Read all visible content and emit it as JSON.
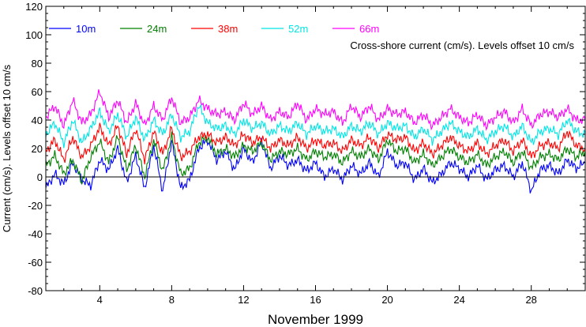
{
  "chart_data": {
    "type": "line",
    "annotation": "Cross-shore current (cm/s). Levels offset 10 cm/s",
    "xlabel": "November 1999",
    "ylabel": "Current (cm/s). Levels offset 10 cm/s",
    "xlim": [
      1,
      31
    ],
    "ylim": [
      -80,
      120
    ],
    "xticks": [
      4,
      8,
      12,
      16,
      20,
      24,
      28
    ],
    "yticks": [
      -80,
      -60,
      -40,
      -20,
      0,
      20,
      40,
      60,
      80,
      100,
      120
    ],
    "grid": false,
    "legend_position": "top",
    "zero_line": true,
    "series": [
      {
        "name": "10m",
        "color": "#0000ff",
        "x": [
          1,
          1.5,
          2,
          2.5,
          3,
          3.5,
          4,
          4.5,
          5,
          5.5,
          6,
          6.5,
          7,
          7.5,
          8,
          8.5,
          9,
          9.5,
          10,
          10.5,
          11,
          11.5,
          12,
          12.5,
          13,
          13.5,
          14,
          14.5,
          15,
          15.5,
          16,
          16.5,
          17,
          17.5,
          18,
          18.5,
          19,
          19.5,
          20,
          20.5,
          21,
          21.5,
          22,
          22.5,
          23,
          23.5,
          24,
          24.5,
          25,
          25.5,
          26,
          26.5,
          27,
          27.5,
          28,
          28.5,
          29,
          29.5,
          30,
          30.5,
          31
        ],
        "y": [
          -8,
          2,
          -5,
          10,
          -2,
          -6,
          12,
          5,
          20,
          -4,
          15,
          -8,
          22,
          -10,
          25,
          -8,
          -2,
          20,
          26,
          12,
          18,
          5,
          20,
          10,
          25,
          6,
          15,
          8,
          12,
          4,
          10,
          0,
          6,
          -2,
          8,
          2,
          10,
          0,
          18,
          8,
          10,
          -2,
          6,
          -4,
          2,
          10,
          6,
          0,
          8,
          -2,
          5,
          8,
          0,
          10,
          -10,
          5,
          8,
          2,
          12,
          6,
          10
        ]
      },
      {
        "name": "24m",
        "color": "#008000",
        "x": [
          1,
          1.5,
          2,
          2.5,
          3,
          3.5,
          4,
          4.5,
          5,
          5.5,
          6,
          6.5,
          7,
          7.5,
          8,
          8.5,
          9,
          9.5,
          10,
          10.5,
          11,
          11.5,
          12,
          12.5,
          13,
          13.5,
          14,
          14.5,
          15,
          15.5,
          16,
          16.5,
          17,
          17.5,
          18,
          18.5,
          19,
          19.5,
          20,
          20.5,
          21,
          21.5,
          22,
          22.5,
          23,
          23.5,
          24,
          24.5,
          25,
          25.5,
          26,
          26.5,
          27,
          27.5,
          28,
          28.5,
          29,
          29.5,
          30,
          30.5,
          31
        ],
        "y": [
          8,
          15,
          2,
          12,
          -3,
          14,
          25,
          10,
          28,
          5,
          22,
          0,
          26,
          4,
          28,
          2,
          6,
          24,
          28,
          16,
          20,
          14,
          22,
          18,
          24,
          12,
          18,
          16,
          20,
          12,
          18,
          14,
          16,
          10,
          18,
          14,
          20,
          12,
          26,
          18,
          20,
          10,
          16,
          8,
          14,
          20,
          14,
          10,
          16,
          8,
          14,
          18,
          10,
          18,
          6,
          14,
          16,
          12,
          20,
          14,
          18
        ]
      },
      {
        "name": "38m",
        "color": "#ff0000",
        "x": [
          1,
          1.5,
          2,
          2.5,
          3,
          3.5,
          4,
          4.5,
          5,
          5.5,
          6,
          6.5,
          7,
          7.5,
          8,
          8.5,
          9,
          9.5,
          10,
          10.5,
          11,
          11.5,
          12,
          12.5,
          13,
          13.5,
          14,
          14.5,
          15,
          15.5,
          16,
          16.5,
          17,
          17.5,
          18,
          18.5,
          19,
          19.5,
          20,
          20.5,
          21,
          21.5,
          22,
          22.5,
          23,
          23.5,
          24,
          24.5,
          25,
          25.5,
          26,
          26.5,
          27,
          27.5,
          28,
          28.5,
          29,
          29.5,
          30,
          30.5,
          31
        ],
        "y": [
          18,
          26,
          12,
          28,
          14,
          22,
          35,
          22,
          36,
          16,
          34,
          12,
          32,
          16,
          34,
          14,
          18,
          28,
          30,
          24,
          28,
          22,
          30,
          24,
          28,
          20,
          26,
          22,
          28,
          20,
          26,
          22,
          24,
          18,
          26,
          22,
          28,
          20,
          30,
          26,
          28,
          18,
          24,
          16,
          22,
          28,
          22,
          18,
          24,
          16,
          22,
          26,
          18,
          26,
          14,
          22,
          24,
          20,
          32,
          22,
          20
        ]
      },
      {
        "name": "52m",
        "color": "#00e5e5",
        "x": [
          1,
          1.5,
          2,
          2.5,
          3,
          3.5,
          4,
          4.5,
          5,
          5.5,
          6,
          6.5,
          7,
          7.5,
          8,
          8.5,
          9,
          9.5,
          10,
          10.5,
          11,
          11.5,
          12,
          12.5,
          13,
          13.5,
          14,
          14.5,
          15,
          15.5,
          16,
          16.5,
          17,
          17.5,
          18,
          18.5,
          19,
          19.5,
          20,
          20.5,
          21,
          21.5,
          22,
          22.5,
          23,
          23.5,
          24,
          24.5,
          25,
          25.5,
          26,
          26.5,
          27,
          27.5,
          28,
          28.5,
          29,
          29.5,
          30,
          30.5,
          31
        ],
        "y": [
          30,
          38,
          24,
          40,
          24,
          34,
          46,
          32,
          44,
          28,
          42,
          26,
          40,
          30,
          44,
          28,
          32,
          50,
          38,
          34,
          36,
          30,
          40,
          34,
          38,
          30,
          36,
          32,
          38,
          30,
          36,
          32,
          34,
          28,
          36,
          32,
          38,
          30,
          38,
          34,
          36,
          28,
          34,
          26,
          32,
          38,
          32,
          28,
          34,
          26,
          32,
          36,
          28,
          36,
          24,
          32,
          34,
          30,
          40,
          32,
          30
        ]
      },
      {
        "name": "66m",
        "color": "#ff00ff",
        "x": [
          1,
          1.5,
          2,
          2.5,
          3,
          3.5,
          4,
          4.5,
          5,
          5.5,
          6,
          6.5,
          7,
          7.5,
          8,
          8.5,
          9,
          9.5,
          10,
          10.5,
          11,
          11.5,
          12,
          12.5,
          13,
          13.5,
          14,
          14.5,
          15,
          15.5,
          16,
          16.5,
          17,
          17.5,
          18,
          18.5,
          19,
          19.5,
          20,
          20.5,
          21,
          21.5,
          22,
          22.5,
          23,
          23.5,
          24,
          24.5,
          25,
          25.5,
          26,
          26.5,
          27,
          27.5,
          28,
          28.5,
          29,
          29.5,
          30,
          30.5,
          31
        ],
        "y": [
          42,
          50,
          36,
          54,
          38,
          44,
          60,
          42,
          54,
          38,
          52,
          36,
          50,
          40,
          56,
          38,
          42,
          54,
          48,
          44,
          46,
          40,
          52,
          44,
          50,
          40,
          46,
          42,
          52,
          40,
          48,
          44,
          46,
          38,
          50,
          42,
          50,
          40,
          48,
          44,
          46,
          38,
          44,
          36,
          42,
          48,
          42,
          38,
          44,
          36,
          42,
          46,
          38,
          48,
          36,
          44,
          46,
          42,
          48,
          40,
          40
        ]
      }
    ]
  }
}
